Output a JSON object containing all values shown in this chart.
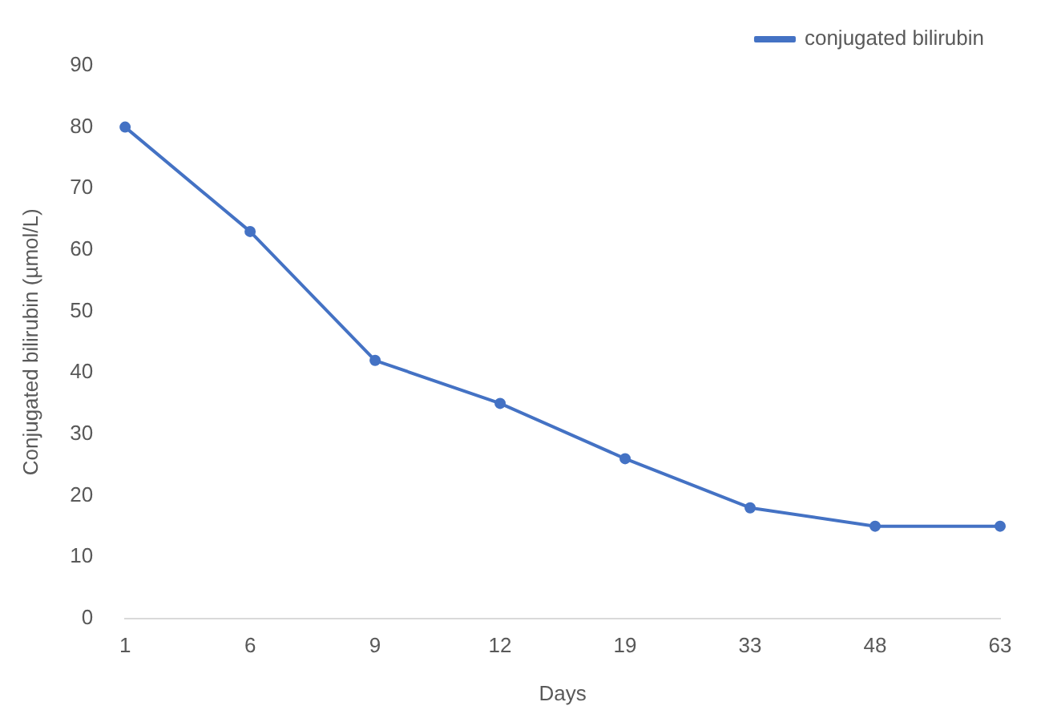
{
  "chart_data": {
    "type": "line",
    "xlabel": "Days",
    "ylabel": "Conjugated bilirubin (µmol/L)",
    "categories": [
      "1",
      "6",
      "9",
      "12",
      "19",
      "33",
      "48",
      "63"
    ],
    "series": [
      {
        "name": "conjugated bilirubin",
        "color": "#4472c4",
        "values": [
          80,
          63,
          42,
          35,
          26,
          18,
          15,
          15
        ]
      }
    ],
    "ylim": [
      0,
      90
    ],
    "yticks": [
      0,
      10,
      20,
      30,
      40,
      50,
      60,
      70,
      80,
      90
    ],
    "grid": false,
    "legend": "top right",
    "marker": "circle",
    "line_style": "solid"
  }
}
